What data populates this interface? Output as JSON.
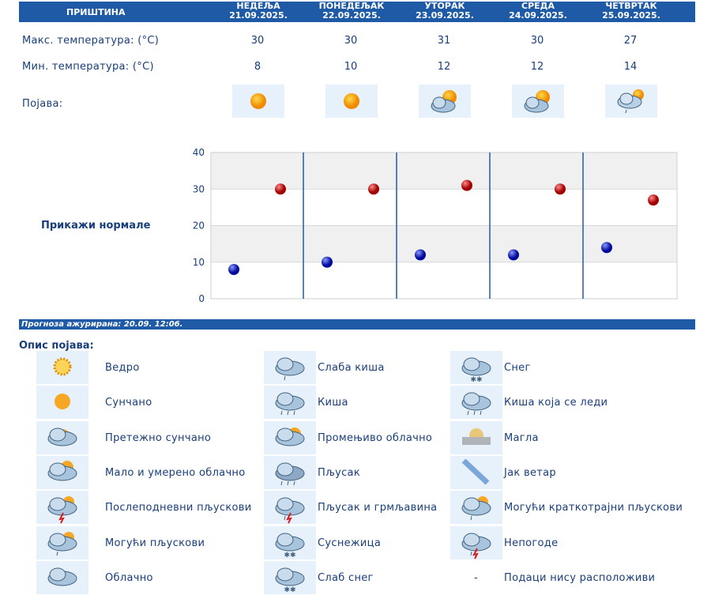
{
  "header": {
    "city": "ПРИШТИНА",
    "days": [
      {
        "name": "НЕДЕЉА",
        "date": "21.09.2025."
      },
      {
        "name": "ПОНЕДЕЉАК",
        "date": "22.09.2025."
      },
      {
        "name": "УТОРАК",
        "date": "23.09.2025."
      },
      {
        "name": "СРЕДА",
        "date": "24.09.2025."
      },
      {
        "name": "ЧЕТВРТАК",
        "date": "25.09.2025."
      }
    ]
  },
  "rows": {
    "max_label": "Макс. температура: (°C)",
    "min_label": "Мин. температура: (°C)",
    "phen_label": "Појава:",
    "max": [
      "30",
      "30",
      "31",
      "30",
      "27"
    ],
    "min": [
      "8",
      "10",
      "12",
      "12",
      "14"
    ],
    "phen_icons": [
      "sun-icon",
      "sun-icon",
      "sun-behind-clouds-icon",
      "sun-behind-clouds-icon",
      "cloud-sun-rain-icon"
    ]
  },
  "chart_data": {
    "type": "scatter",
    "categories": [
      "21.09.2025.",
      "22.09.2025.",
      "23.09.2025.",
      "24.09.2025.",
      "25.09.2025."
    ],
    "series": [
      {
        "values": [
          30,
          30,
          31,
          30,
          27
        ],
        "color": "#cc0000"
      },
      {
        "values": [
          8,
          10,
          12,
          12,
          14
        ],
        "color": "#0010cc"
      }
    ],
    "ylim": [
      0,
      40
    ],
    "yticks": [
      "0",
      "10",
      "20",
      "30",
      "40"
    ],
    "grid": true
  },
  "normals_link": "Прикажи нормале",
  "updated": "Прогноза ажурирана:  20.09.  12:06.",
  "legend": {
    "title": "Опис појава:",
    "items": [
      {
        "label": "Ведро",
        "icon": "clear-sun-icon"
      },
      {
        "label": "Сунчано",
        "icon": "sun-icon"
      },
      {
        "label": "Претежно сунчано",
        "icon": "mostly-sunny-icon"
      },
      {
        "label": "Мало и умерено облачно",
        "icon": "partly-cloudy-icon"
      },
      {
        "label": "Послеподневни пљускови",
        "icon": "afternoon-showers-icon"
      },
      {
        "label": "Могући пљускови",
        "icon": "possible-showers-icon"
      },
      {
        "label": "Облачно",
        "icon": "cloud-icon"
      },
      {
        "label": "Слаба киша",
        "icon": "light-rain-icon"
      },
      {
        "label": "Киша",
        "icon": "rain-icon"
      },
      {
        "label": "Промењиво облачно",
        "icon": "variable-cloudy-icon"
      },
      {
        "label": "Пљусак",
        "icon": "shower-icon"
      },
      {
        "label": "Пљусак и грмљавина",
        "icon": "thunder-shower-icon"
      },
      {
        "label": "Суснежица",
        "icon": "sleet-icon"
      },
      {
        "label": "Слаб снег",
        "icon": "light-snow-icon"
      },
      {
        "label": "Снег",
        "icon": "snow-icon"
      },
      {
        "label": "Киша која се леди",
        "icon": "freezing-rain-icon"
      },
      {
        "label": "Магла",
        "icon": "fog-icon"
      },
      {
        "label": "Јак ветар",
        "icon": "strong-wind-icon"
      },
      {
        "label": "Могући краткотрајни пљускови",
        "icon": "brief-showers-icon"
      },
      {
        "label": "Непогоде",
        "icon": "storm-icon"
      },
      {
        "label": "Подаци нису расположиви",
        "icon": "dash"
      }
    ]
  }
}
